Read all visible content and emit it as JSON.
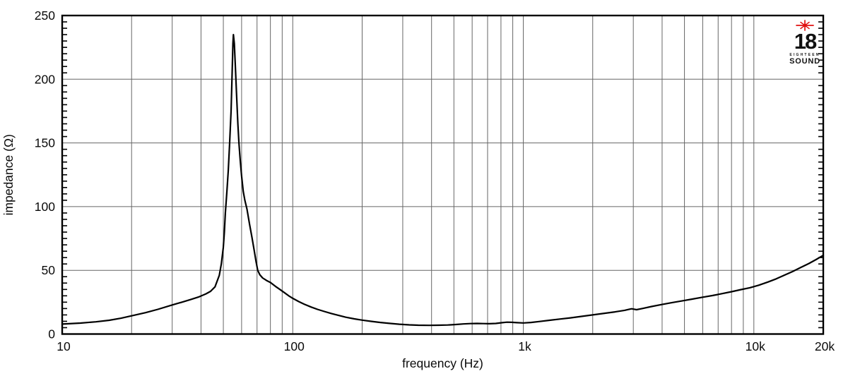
{
  "chart_data": {
    "type": "line",
    "title": "",
    "xlabel": "frequency (Hz)",
    "ylabel": "impedance (Ω)",
    "x_scale": "log",
    "xlim": [
      10,
      20000
    ],
    "ylim": [
      0,
      250
    ],
    "grid": true,
    "legend": "none",
    "x_ticks": [
      {
        "label": "10",
        "value": 10
      },
      {
        "label": "100",
        "value": 100
      },
      {
        "label": "1k",
        "value": 1000
      },
      {
        "label": "10k",
        "value": 10000
      },
      {
        "label": "20k",
        "value": 20000
      }
    ],
    "y_ticks": [
      {
        "label": "0",
        "value": 0
      },
      {
        "label": "50",
        "value": 50
      },
      {
        "label": "100",
        "value": 100
      },
      {
        "label": "150",
        "value": 150
      },
      {
        "label": "200",
        "value": 200
      },
      {
        "label": "250",
        "value": 250
      }
    ],
    "x_gridlines": [
      20,
      30,
      40,
      50,
      60,
      70,
      80,
      90,
      100,
      200,
      300,
      400,
      500,
      600,
      700,
      800,
      900,
      1000,
      2000,
      3000,
      4000,
      5000,
      6000,
      7000,
      8000,
      9000,
      10000
    ],
    "y_gridlines": [
      50,
      100,
      150,
      200
    ],
    "y_minor_tick_step": 5,
    "grid_color": "#666666",
    "axis_color": "#000000",
    "curve_color": "#000000",
    "series": [
      {
        "name": "impedance",
        "peak": {
          "frequency_hz": 55,
          "impedance_ohm": 235
        },
        "points": [
          [
            10,
            7.8
          ],
          [
            12,
            8.6
          ],
          [
            14,
            9.6
          ],
          [
            16,
            10.8
          ],
          [
            18,
            12.4
          ],
          [
            20,
            14.3
          ],
          [
            23,
            16.8
          ],
          [
            26,
            19.4
          ],
          [
            30,
            22.8
          ],
          [
            33,
            25
          ],
          [
            36,
            27
          ],
          [
            39,
            29
          ],
          [
            42,
            31.5
          ],
          [
            44,
            33.5
          ],
          [
            46,
            37
          ],
          [
            48,
            46
          ],
          [
            49,
            55
          ],
          [
            50,
            68
          ],
          [
            50.5,
            80
          ],
          [
            51,
            95
          ],
          [
            51.8,
            112
          ],
          [
            52.5,
            128
          ],
          [
            53.2,
            148
          ],
          [
            54,
            175
          ],
          [
            54.6,
            205
          ],
          [
            55,
            228
          ],
          [
            55.3,
            235
          ],
          [
            55.8,
            228
          ],
          [
            56.3,
            212
          ],
          [
            57,
            190
          ],
          [
            57.8,
            165
          ],
          [
            58.4,
            150
          ],
          [
            59.2,
            136
          ],
          [
            60,
            124
          ],
          [
            61,
            112
          ],
          [
            62,
            105
          ],
          [
            63.3,
            98
          ],
          [
            65,
            86
          ],
          [
            66.5,
            76
          ],
          [
            68,
            66
          ],
          [
            69.3,
            57
          ],
          [
            70.5,
            50
          ],
          [
            72,
            46.5
          ],
          [
            74,
            44
          ],
          [
            77,
            42
          ],
          [
            80,
            40.5
          ],
          [
            84,
            37.5
          ],
          [
            88,
            35
          ],
          [
            92,
            32.5
          ],
          [
            96,
            30
          ],
          [
            100,
            28
          ],
          [
            106,
            25.5
          ],
          [
            112,
            23.5
          ],
          [
            120,
            21.2
          ],
          [
            128,
            19.4
          ],
          [
            137,
            17.7
          ],
          [
            147,
            16.1
          ],
          [
            158,
            14.6
          ],
          [
            170,
            13.2
          ],
          [
            185,
            11.9
          ],
          [
            200,
            10.9
          ],
          [
            220,
            9.9
          ],
          [
            240,
            9.1
          ],
          [
            265,
            8.3
          ],
          [
            290,
            7.7
          ],
          [
            320,
            7.2
          ],
          [
            350,
            6.9
          ],
          [
            390,
            6.8
          ],
          [
            430,
            6.9
          ],
          [
            470,
            7.1
          ],
          [
            510,
            7.5
          ],
          [
            550,
            7.9
          ],
          [
            590,
            8.2
          ],
          [
            630,
            8.3
          ],
          [
            670,
            8.2
          ],
          [
            710,
            8.1
          ],
          [
            760,
            8.3
          ],
          [
            810,
            8.9
          ],
          [
            850,
            9.3
          ],
          [
            890,
            9.2
          ],
          [
            940,
            8.9
          ],
          [
            1000,
            8.7
          ],
          [
            1080,
            9.1
          ],
          [
            1170,
            9.8
          ],
          [
            1300,
            10.8
          ],
          [
            1450,
            11.8
          ],
          [
            1600,
            12.7
          ],
          [
            1800,
            13.9
          ],
          [
            2000,
            15
          ],
          [
            2250,
            16.3
          ],
          [
            2500,
            17.4
          ],
          [
            2750,
            18.6
          ],
          [
            2950,
            19.8
          ],
          [
            3100,
            19.1
          ],
          [
            3300,
            20.1
          ],
          [
            3600,
            21.6
          ],
          [
            4000,
            23.2
          ],
          [
            4400,
            24.6
          ],
          [
            4900,
            26.1
          ],
          [
            5400,
            27.4
          ],
          [
            6000,
            28.9
          ],
          [
            6600,
            30.2
          ],
          [
            7200,
            31.5
          ],
          [
            8000,
            33.2
          ],
          [
            8800,
            34.9
          ],
          [
            9600,
            36.3
          ],
          [
            10500,
            38.3
          ],
          [
            11500,
            40.8
          ],
          [
            12500,
            43.3
          ],
          [
            13500,
            46
          ],
          [
            14700,
            49
          ],
          [
            16000,
            52.3
          ],
          [
            17300,
            55.3
          ],
          [
            18600,
            58.4
          ],
          [
            20000,
            61.8
          ]
        ]
      }
    ]
  },
  "logo": {
    "number": "18",
    "name": "EIGHTEEN",
    "word": "SOUND",
    "star_color": "#e01010",
    "text_color": "#111111"
  }
}
